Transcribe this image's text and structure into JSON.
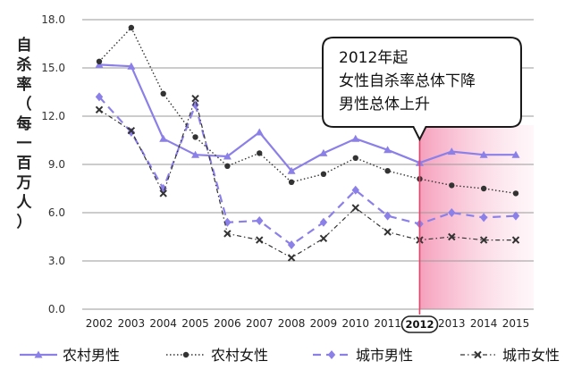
{
  "chart_data": {
    "type": "line",
    "ylabel": "自杀率（每一百万人）",
    "ylim": [
      0,
      18
    ],
    "yticks": [
      "0.0",
      "3.0",
      "6.0",
      "9.0",
      "12.0",
      "15.0",
      "18.0"
    ],
    "categories": [
      "2002",
      "2003",
      "2004",
      "2005",
      "2006",
      "2007",
      "2008",
      "2009",
      "2010",
      "2011",
      "2012",
      "2013",
      "2014",
      "2015"
    ],
    "highlight_category": "2012",
    "grid": true,
    "legend_position": "bottom",
    "annotation": [
      "2012年起",
      "女性自杀率总体下降",
      "男性总体上升"
    ],
    "colors": {
      "purple": "#8b7fe8",
      "dark": "#333333",
      "highlight": "#e8426b",
      "shade": "#f4a7be"
    },
    "series": [
      {
        "name": "农村男性",
        "style": "solid-triangle",
        "values": [
          15.2,
          15.1,
          10.6,
          9.6,
          9.5,
          11.0,
          8.6,
          9.7,
          10.6,
          9.9,
          9.1,
          9.8,
          9.6,
          9.6
        ]
      },
      {
        "name": "农村女性",
        "style": "dotted-circle",
        "values": [
          15.4,
          17.5,
          13.4,
          10.7,
          8.9,
          9.7,
          7.9,
          8.4,
          9.4,
          8.6,
          8.1,
          7.7,
          7.5,
          7.2
        ]
      },
      {
        "name": "城市男性",
        "style": "dashed-diamond",
        "values": [
          13.2,
          11.0,
          7.5,
          12.7,
          5.4,
          5.5,
          4.0,
          5.4,
          7.4,
          5.8,
          5.3,
          6.0,
          5.7,
          5.8
        ]
      },
      {
        "name": "城市女性",
        "style": "dashdot-x",
        "values": [
          12.4,
          11.1,
          7.2,
          13.1,
          4.7,
          4.3,
          3.2,
          4.4,
          6.3,
          4.8,
          4.3,
          4.5,
          4.3,
          4.3
        ]
      }
    ]
  }
}
